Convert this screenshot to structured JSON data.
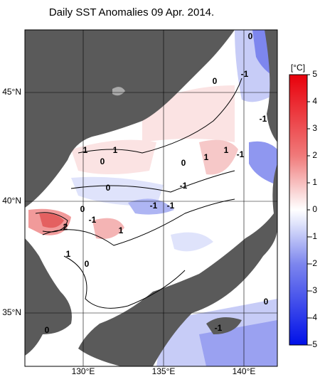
{
  "title": "Daily SST Anomalies 09 Apr. 2014.",
  "lat_labels": [
    "45°N",
    "40°N",
    "35°N"
  ],
  "lon_labels": [
    "130°E",
    "135°E",
    "140°E"
  ],
  "colorbar": {
    "label": "[°C]",
    "lim": [
      -5,
      5
    ],
    "ticks": [
      5,
      4,
      3,
      2,
      1,
      0,
      -1,
      -2,
      -3,
      -4,
      -5
    ]
  },
  "contour_labels": [
    "0",
    "-1",
    "0",
    "-1",
    "1",
    "1",
    "0",
    "1",
    "-1",
    "1",
    "0",
    "0",
    "-1",
    "-1",
    "0",
    "-1",
    "2",
    "-1",
    "1",
    "1",
    "0",
    "0",
    "0",
    "-1"
  ]
}
